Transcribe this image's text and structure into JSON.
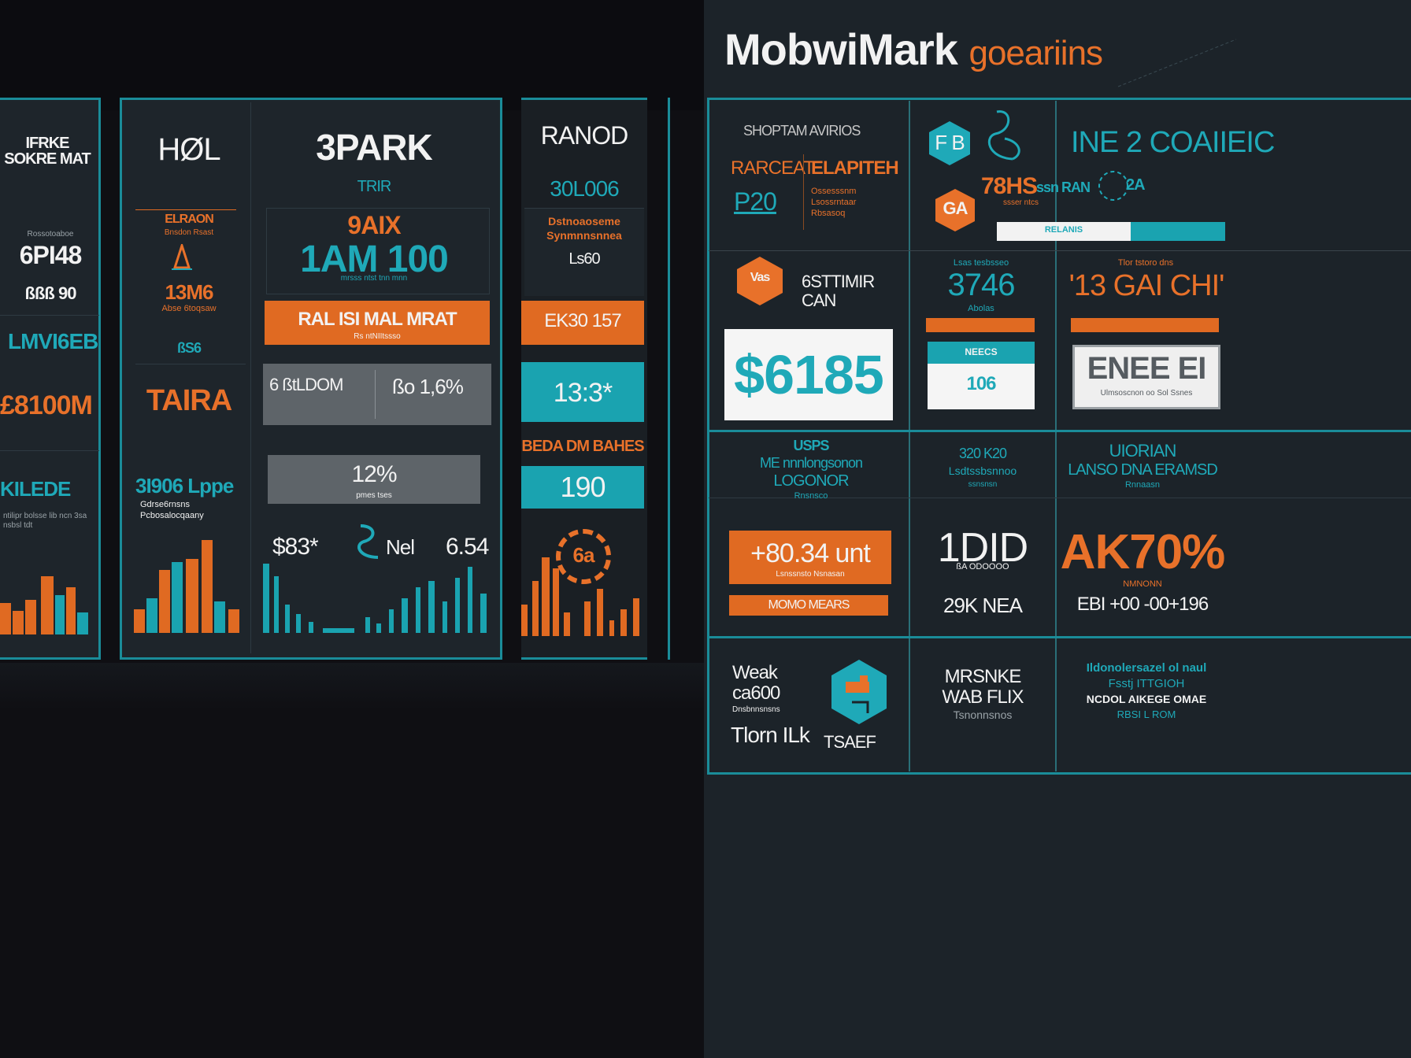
{
  "brand": {
    "part1": "MobwiMark",
    "part2": "goeariins"
  },
  "left_panel": {
    "col1": {
      "title": "IFRKE SOKRE MAT",
      "label1_small": "Rossotoaboe",
      "value1": "6PI48",
      "value2": "ßßß 90",
      "teal_label": "LMVI6EB",
      "orange_value": "£8100M",
      "teal_value": "KILEDE",
      "footnote": "ntilipr bolsse lib ncn 3sa nsbsl tdt"
    },
    "col2": {
      "title": "HØL",
      "orange_label": "ELRAON",
      "orange_sub": "Bnsdon Rsast",
      "value": "13M6",
      "value_sub": "Abse 6toqsaw",
      "small": "ßS6",
      "orange_value": "TAIRA",
      "teal_value": "3I906 Lppe",
      "teal_sub": "Gdrse6rnsns Pcbosalocqaany"
    },
    "col3": {
      "title": "3PARK",
      "sub": "TRIR",
      "orange_value": "9AIX",
      "big_value": "1AM 100",
      "big_sub": "mrsss  ntst tnn mnn",
      "orange_bar": "RAL ISI MAL MRAT",
      "orange_bar_sub": "Rs ntNIItssso",
      "grey_box_left": "6 ßtLDOM",
      "grey_box_right": "ßo 1,6%",
      "grey_box2": "12%",
      "grey_box2_sub": "pmes tses",
      "stat1": "$83*",
      "stat2": "Nel",
      "stat3": "6.54"
    },
    "col4": {
      "title": "RANOD",
      "teal_value": "30L006",
      "orange_text": "Dstnoaoseme Synmnnsnnea",
      "value": "Ls60",
      "orange_bar": "EK30 157",
      "teal_box": "13:3*",
      "orange_label": "BEDA DM BAHES",
      "teal_box2": "190",
      "badge": "6a"
    }
  },
  "right_panel": {
    "top_left": {
      "header": "SHOPTAM AVIRIOS",
      "orange1": "RARCEAT",
      "orange2": "ELAPITEH",
      "teal": "P20",
      "sub": "Ossesssnm Lsossrntaar Rbsasoq"
    },
    "top_mid": {
      "hex_label": "F B",
      "orange_value": "78HS",
      "orange_sub": "ssser ntcs",
      "teal_side": "ssn RAN",
      "hex_orange_label": "GA"
    },
    "top_right": {
      "title": "INE 2 COAIIEIC",
      "value": "2A",
      "bar_label": "RELANIS"
    },
    "row2_left": {
      "hex_label": "Vas",
      "text": "6STTIMIR CAN",
      "big_value": "$6185"
    },
    "row2_mid": {
      "small": "Lsas tesbsseo",
      "value": "3746",
      "sub": "Abolas",
      "card_header": "NEECS",
      "card_value": "106"
    },
    "row2_right": {
      "small": "Tlor tstoro dns",
      "value": "'13 GAI CHI'",
      "card_value": "ENEE EI",
      "card_sub": "Ulmsoscnon oo Sol Ssnes"
    },
    "row3_left": {
      "teal": "USPS",
      "teal2": "ME nnnlongsonon",
      "teal3": "LOGONOR",
      "teal4": "Rnsnsco",
      "orange_box": "+80.34 unt",
      "orange_box_sub": "Lsnssnsto Nsnasan",
      "orange_bar": "MOMO MEARS"
    },
    "row3_mid": {
      "teal": "320 K20",
      "teal2": "Lsdtssbsnnoo",
      "teal3": "ssnsnsn",
      "big_value": "1DID",
      "big_sub": "ßA ODOOOO",
      "value2": "29K NEA"
    },
    "row3_right": {
      "teal": "UIORIAN",
      "teal2": "LANSO DNA ERAMSD",
      "teal3": "Rnnaasn",
      "orange_value": "AK70%",
      "orange_sub": "NMNONN",
      "value2": "EBI +00 -00+196"
    },
    "row4_left": {
      "text1": "Weak ca600",
      "text1_sub": "Dnsbnnsnsns",
      "text2": "Tlorn ILk",
      "text3": "TSAEF"
    },
    "row4_mid": {
      "text1": "MRSNKE",
      "text2": "WAB FLIX",
      "text3": "Tsnonnsnos"
    },
    "row4_right": {
      "teal": "Ildonolersazel ol naul",
      "teal2": "Fsstj ITTGIOH",
      "white": "NCDOL AIKEGE OMAE",
      "teal3": "RBSI L ROM"
    }
  },
  "colors": {
    "teal": "#1fa9b8",
    "orange": "#e8712a",
    "dark": "#1e252b"
  }
}
